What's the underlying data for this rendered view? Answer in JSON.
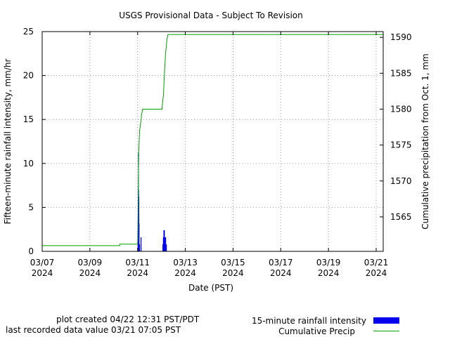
{
  "chart_data": {
    "type": "bar",
    "title": "USGS Provisional Data - Subject To Revision",
    "xlabel": "Date (PST)",
    "ylabel": "Fifteen-minute rainfall intensity, mm/hr",
    "y2label": "Cumulative precipitation from Oct. 1, mm",
    "xlim": [
      "2024-03-07",
      "2024-03-21 07:05"
    ],
    "ylim": [
      0,
      25
    ],
    "y2lim": [
      1560.2,
      1590.8
    ],
    "grid": true,
    "x_ticks": [
      {
        "date": "2024-03-07",
        "label": "03/07",
        "year": "2024"
      },
      {
        "date": "2024-03-09",
        "label": "03/09",
        "year": "2024"
      },
      {
        "date": "2024-03-11",
        "label": "03/11",
        "year": "2024"
      },
      {
        "date": "2024-03-13",
        "label": "03/13",
        "year": "2024"
      },
      {
        "date": "2024-03-15",
        "label": "03/15",
        "year": "2024"
      },
      {
        "date": "2024-03-17",
        "label": "03/17",
        "year": "2024"
      },
      {
        "date": "2024-03-19",
        "label": "03/19",
        "year": "2024"
      },
      {
        "date": "2024-03-21",
        "label": "03/21",
        "year": "2024"
      }
    ],
    "y_ticks": [
      "0",
      "5",
      "10",
      "15",
      "20",
      "25"
    ],
    "y2_ticks": [
      "1565",
      "1570",
      "1575",
      "1580",
      "1585",
      "1590"
    ],
    "series": [
      {
        "name": "15-minute rainfall intensity",
        "type": "bar",
        "color": "#0000ee",
        "points": [
          [
            "2024-03-11 00:00",
            2.4
          ],
          [
            "2024-03-11 00:15",
            5.0
          ],
          [
            "2024-03-11 00:30",
            11.2
          ],
          [
            "2024-03-11 00:45",
            7.0
          ],
          [
            "2024-03-11 01:00",
            6.2
          ],
          [
            "2024-03-11 01:15",
            3.2
          ],
          [
            "2024-03-11 01:30",
            0.8
          ],
          [
            "2024-03-11 01:45",
            0.8
          ],
          [
            "2024-03-11 03:00",
            1.6
          ],
          [
            "2024-03-11 03:15",
            1.6
          ],
          [
            "2024-03-12 01:00",
            0.8
          ],
          [
            "2024-03-12 01:15",
            0.8
          ],
          [
            "2024-03-12 01:30",
            1.6
          ],
          [
            "2024-03-12 01:45",
            1.6
          ],
          [
            "2024-03-12 02:00",
            2.4
          ],
          [
            "2024-03-12 02:15",
            2.4
          ],
          [
            "2024-03-12 02:30",
            2.4
          ],
          [
            "2024-03-12 02:45",
            2.4
          ],
          [
            "2024-03-12 03:00",
            1.6
          ],
          [
            "2024-03-12 03:15",
            1.6
          ],
          [
            "2024-03-12 03:30",
            1.6
          ],
          [
            "2024-03-12 03:45",
            1.6
          ],
          [
            "2024-03-12 04:00",
            1.6
          ],
          [
            "2024-03-12 04:15",
            0.8
          ],
          [
            "2024-03-12 04:30",
            0.8
          ],
          [
            "2024-03-12 04:45",
            0.8
          ]
        ]
      },
      {
        "name": "Cumulative Precip",
        "type": "step",
        "color": "#00a000",
        "points": [
          [
            "2024-03-07 00:00",
            1561.0
          ],
          [
            "2024-03-10 06:00",
            1561.0
          ],
          [
            "2024-03-10 06:00",
            1561.2
          ],
          [
            "2024-03-11 00:00",
            1561.2
          ],
          [
            "2024-03-11 00:15",
            1562.0
          ],
          [
            "2024-03-11 00:30",
            1566.0
          ],
          [
            "2024-03-11 00:45",
            1570.0
          ],
          [
            "2024-03-11 01:15",
            1574.5
          ],
          [
            "2024-03-11 02:00",
            1577.0
          ],
          [
            "2024-03-11 03:00",
            1578.0
          ],
          [
            "2024-03-11 04:00",
            1579.2
          ],
          [
            "2024-03-11 05:00",
            1580.0
          ],
          [
            "2024-03-12 00:30",
            1580.0
          ],
          [
            "2024-03-12 02:00",
            1582.0
          ],
          [
            "2024-03-12 03:00",
            1585.0
          ],
          [
            "2024-03-12 04:00",
            1587.5
          ],
          [
            "2024-03-12 05:30",
            1589.7
          ],
          [
            "2024-03-12 06:30",
            1590.4
          ],
          [
            "2024-03-21 07:05",
            1590.4
          ]
        ]
      }
    ]
  },
  "footer": {
    "created": "plot created 04/22 12:31 PST/PDT",
    "last_value": "last recorded data value 03/21 07:05 PST"
  },
  "legend": {
    "placement": "bottom-right",
    "intensity_label": "15-minute rainfall intensity",
    "cumulative_label": "Cumulative Precip"
  }
}
